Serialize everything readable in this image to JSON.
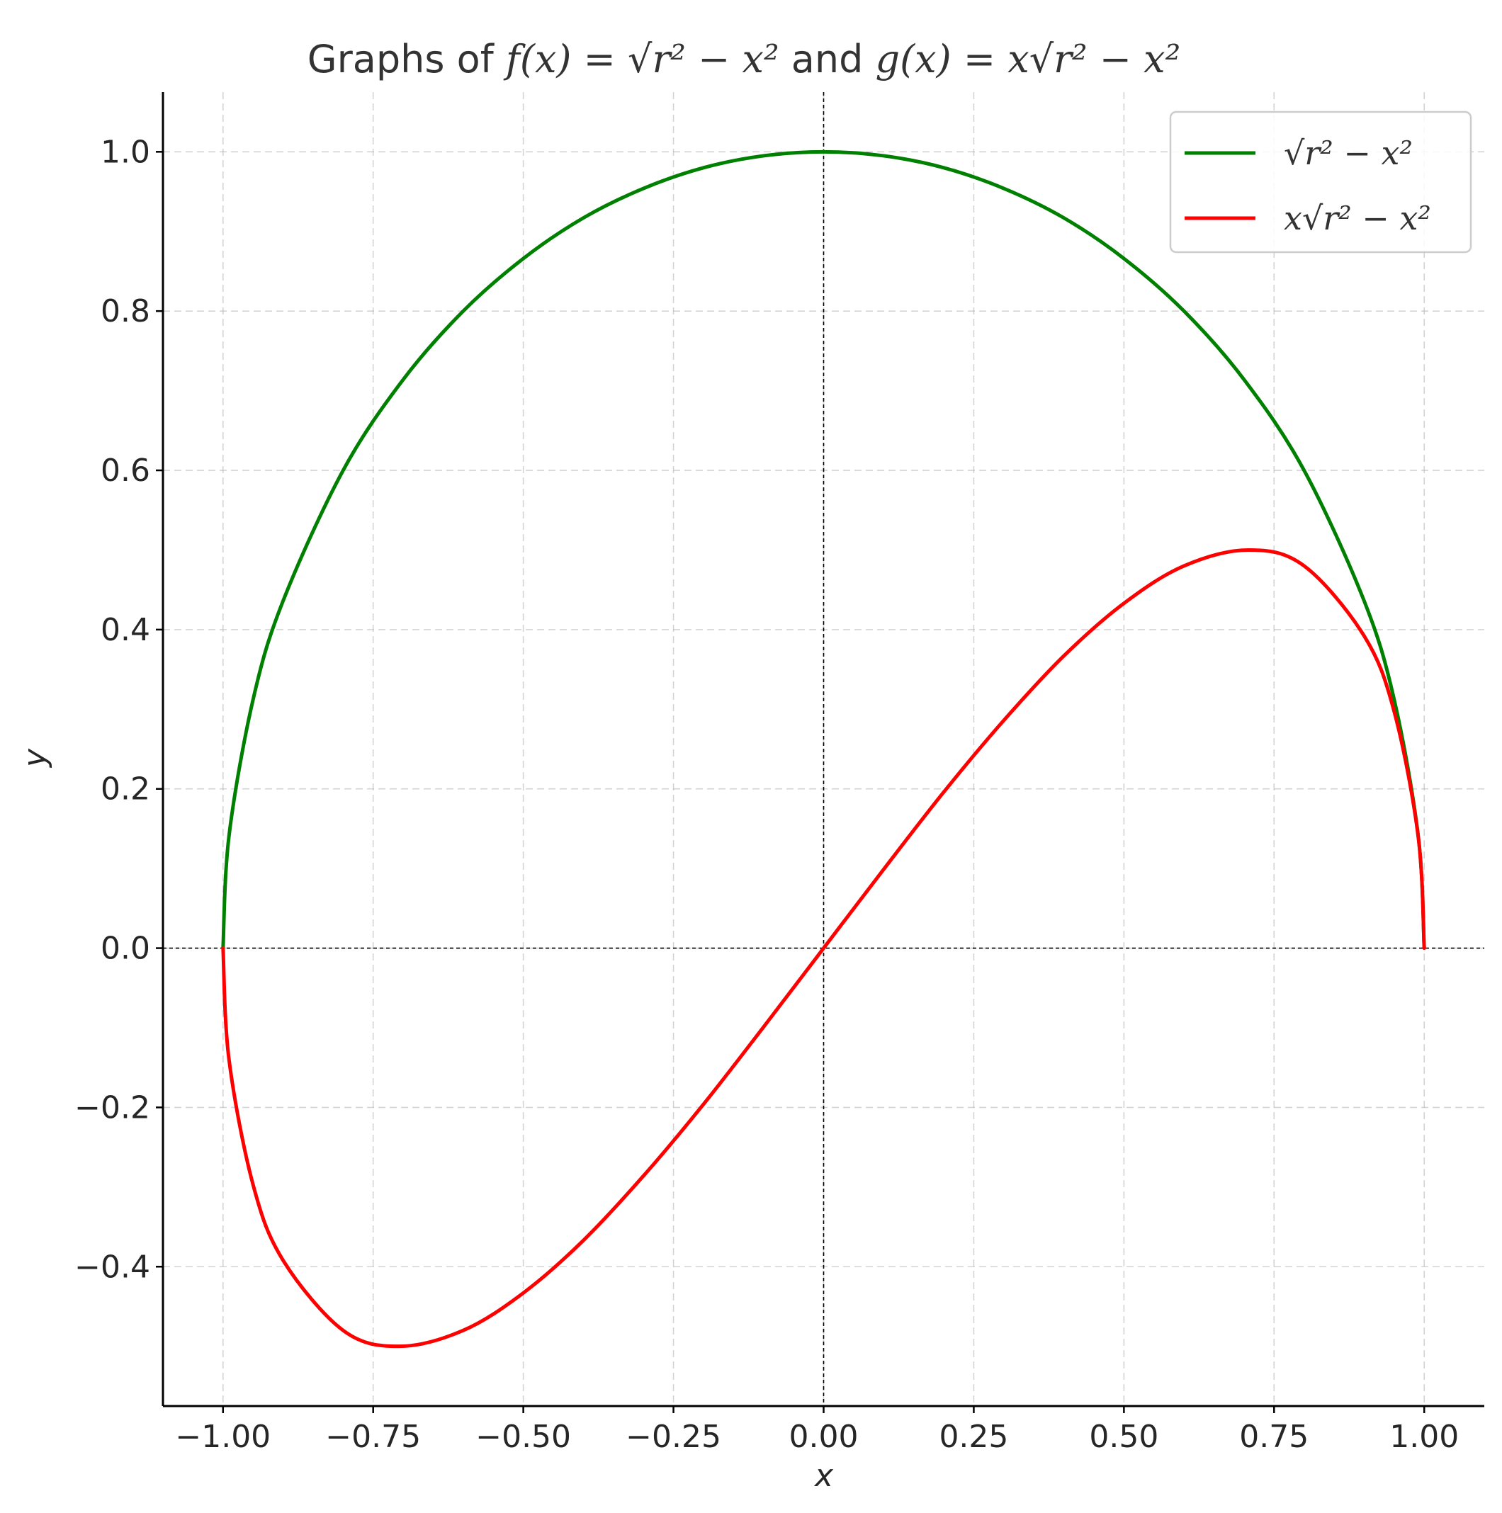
{
  "chart_data": {
    "type": "line",
    "title": {
      "prefix": "Graphs of ",
      "f": "f(x) = √r² − x²",
      "middle": " and ",
      "g": "g(x) = x√r² − x²"
    },
    "xlabel": "x",
    "ylabel": "y",
    "xlim": [
      -1.1,
      1.1
    ],
    "ylim": [
      -0.575,
      1.075
    ],
    "x_ticks": [
      -1.0,
      -0.75,
      -0.5,
      -0.25,
      0.0,
      0.25,
      0.5,
      0.75,
      1.0
    ],
    "x_tick_labels": [
      "−1.00",
      "−0.75",
      "−0.50",
      "−0.25",
      "0.00",
      "0.25",
      "0.50",
      "0.75",
      "1.00"
    ],
    "y_ticks": [
      -0.4,
      -0.2,
      0.0,
      0.2,
      0.4,
      0.6,
      0.8,
      1.0
    ],
    "y_tick_labels": [
      "−0.4",
      "−0.2",
      "0.0",
      "0.2",
      "0.4",
      "0.6",
      "0.8",
      "1.0"
    ],
    "grid": true,
    "legend_position": "top-right",
    "reference_lines": {
      "x": 0,
      "y": 0,
      "style": "dashed",
      "color": "#000000"
    },
    "series": [
      {
        "name": "√r² − x²",
        "color": "#008000",
        "x": [
          -1.0,
          -0.99,
          -0.95,
          -0.9,
          -0.8,
          -0.7,
          -0.6,
          -0.5,
          -0.4,
          -0.3,
          -0.2,
          -0.1,
          0.0,
          0.1,
          0.2,
          0.3,
          0.4,
          0.5,
          0.6,
          0.7,
          0.8,
          0.9,
          0.95,
          0.99,
          1.0
        ],
        "y": [
          0.0,
          0.141,
          0.312,
          0.436,
          0.6,
          0.714,
          0.8,
          0.866,
          0.917,
          0.954,
          0.98,
          0.995,
          1.0,
          0.995,
          0.98,
          0.954,
          0.917,
          0.866,
          0.8,
          0.714,
          0.6,
          0.436,
          0.312,
          0.141,
          0.0
        ]
      },
      {
        "name": "x√r² − x²",
        "color": "#ff0000",
        "x": [
          -1.0,
          -0.99,
          -0.95,
          -0.9,
          -0.8,
          -0.707,
          -0.6,
          -0.5,
          -0.4,
          -0.3,
          -0.2,
          -0.1,
          0.0,
          0.1,
          0.2,
          0.3,
          0.4,
          0.5,
          0.6,
          0.707,
          0.8,
          0.9,
          0.95,
          0.99,
          1.0
        ],
        "y": [
          0.0,
          -0.14,
          -0.297,
          -0.392,
          -0.48,
          -0.5,
          -0.48,
          -0.433,
          -0.367,
          -0.286,
          -0.196,
          -0.099,
          0.0,
          0.099,
          0.196,
          0.286,
          0.367,
          0.433,
          0.48,
          0.5,
          0.48,
          0.392,
          0.297,
          0.14,
          0.0
        ]
      }
    ]
  }
}
